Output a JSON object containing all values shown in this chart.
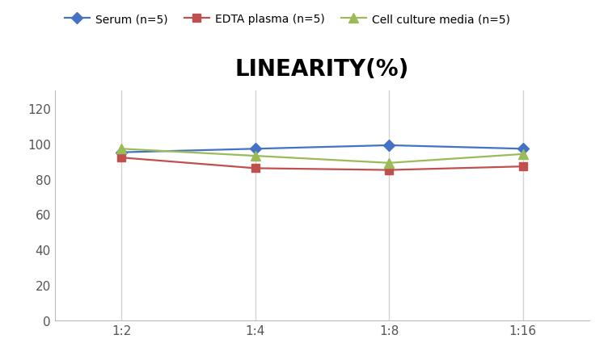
{
  "title": "LINEARITY(%)",
  "x_labels": [
    "1:2",
    "1:4",
    "1:8",
    "1:16"
  ],
  "x_positions": [
    0,
    1,
    2,
    3
  ],
  "series": [
    {
      "label": "Serum (n=5)",
      "values": [
        95,
        97,
        99,
        97
      ],
      "color": "#4472C4",
      "marker": "D",
      "markersize": 7,
      "linewidth": 1.6
    },
    {
      "label": "EDTA plasma (n=5)",
      "values": [
        92,
        86,
        85,
        87
      ],
      "color": "#C0504D",
      "marker": "s",
      "markersize": 7,
      "linewidth": 1.6
    },
    {
      "label": "Cell culture media (n=5)",
      "values": [
        97,
        93,
        89,
        94
      ],
      "color": "#9BBB59",
      "marker": "^",
      "markersize": 8,
      "linewidth": 1.6
    }
  ],
  "ylim": [
    0,
    130
  ],
  "yticks": [
    0,
    20,
    40,
    60,
    80,
    100,
    120
  ],
  "background_color": "#ffffff",
  "grid_color": "#d3d3d3",
  "title_fontsize": 20,
  "legend_fontsize": 10,
  "tick_fontsize": 11
}
